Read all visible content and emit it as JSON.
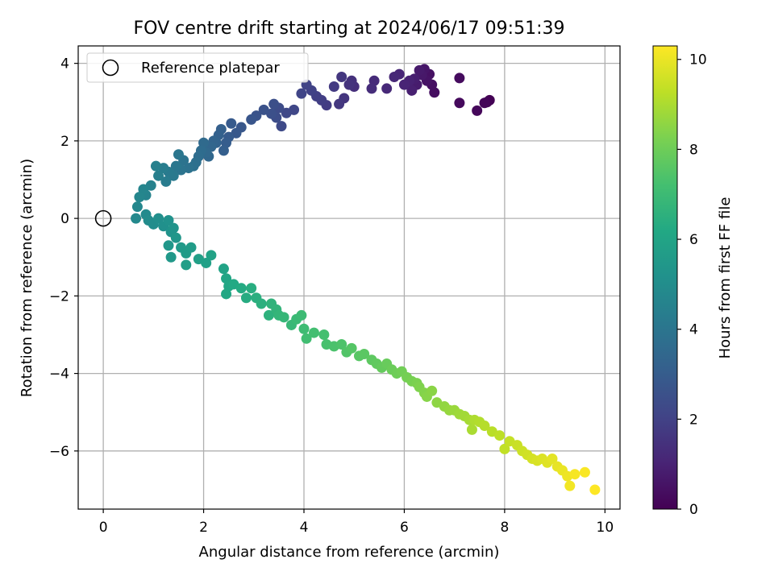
{
  "chart_data": {
    "type": "scatter",
    "title": "FOV centre drift starting at 2024/06/17 09:51:39",
    "xlabel": "Angular distance from reference (arcmin)",
    "ylabel": "Rotation from reference (arcmin)",
    "xlim": [
      -0.5,
      10.3
    ],
    "ylim": [
      -7.5,
      4.45
    ],
    "xticks": [
      0,
      2,
      4,
      6,
      8,
      10
    ],
    "yticks": [
      -6,
      -4,
      -2,
      0,
      2,
      4
    ],
    "grid": true,
    "legend": {
      "position": "top-left",
      "entries": [
        "Reference platepar"
      ]
    },
    "reference_point": {
      "x": 0,
      "y": 0,
      "label": "Reference platepar"
    },
    "colorbar": {
      "label": "Hours from first FF file",
      "colormap": "viridis",
      "range": [
        0,
        10.3
      ],
      "ticks": [
        0,
        2,
        4,
        6,
        8,
        10
      ]
    },
    "series": [
      {
        "columns": [
          "x",
          "y",
          "hours"
        ],
        "points": [
          [
            7.7,
            3.05
          ],
          [
            7.65,
            3.0
          ],
          [
            7.6,
            2.98
          ],
          [
            7.45,
            2.78
          ],
          [
            7.1,
            2.98
          ],
          [
            7.1,
            3.62
          ],
          [
            6.6,
            3.25
          ],
          [
            6.55,
            3.45
          ],
          [
            6.5,
            3.72
          ],
          [
            6.45,
            3.55
          ],
          [
            6.4,
            3.85
          ],
          [
            6.35,
            3.7
          ],
          [
            6.3,
            3.82
          ],
          [
            6.25,
            3.45
          ],
          [
            6.2,
            3.6
          ],
          [
            6.15,
            3.3
          ],
          [
            6.1,
            3.55
          ],
          [
            6.0,
            3.45
          ],
          [
            5.9,
            3.72
          ],
          [
            5.8,
            3.65
          ],
          [
            5.65,
            3.35
          ],
          [
            5.4,
            3.55
          ],
          [
            5.35,
            3.35
          ],
          [
            5.0,
            3.4
          ],
          [
            4.95,
            3.55
          ],
          [
            4.9,
            3.45
          ],
          [
            4.8,
            3.1
          ],
          [
            4.75,
            3.65
          ],
          [
            4.7,
            2.95
          ],
          [
            4.6,
            3.4
          ],
          [
            4.45,
            2.92
          ],
          [
            4.35,
            3.05
          ],
          [
            4.25,
            3.15
          ],
          [
            4.15,
            3.3
          ],
          [
            4.05,
            3.45
          ],
          [
            3.95,
            3.22
          ],
          [
            3.8,
            2.8
          ],
          [
            3.65,
            2.72
          ],
          [
            3.55,
            2.38
          ],
          [
            3.5,
            2.85
          ],
          [
            3.45,
            2.6
          ],
          [
            3.4,
            2.95
          ],
          [
            3.35,
            2.7
          ],
          [
            3.2,
            2.8
          ],
          [
            3.05,
            2.65
          ],
          [
            2.95,
            2.55
          ],
          [
            2.75,
            2.35
          ],
          [
            2.65,
            2.2
          ],
          [
            2.55,
            2.45
          ],
          [
            2.5,
            2.1
          ],
          [
            2.45,
            1.95
          ],
          [
            2.4,
            1.75
          ],
          [
            2.35,
            2.3
          ],
          [
            2.3,
            2.15
          ],
          [
            2.25,
            1.95
          ],
          [
            2.2,
            2.0
          ],
          [
            2.15,
            1.85
          ],
          [
            2.1,
            1.6
          ],
          [
            2.05,
            1.7
          ],
          [
            2.0,
            1.95
          ],
          [
            1.95,
            1.75
          ],
          [
            1.9,
            1.6
          ],
          [
            1.85,
            1.45
          ],
          [
            1.8,
            1.35
          ],
          [
            1.7,
            1.3
          ],
          [
            1.6,
            1.5
          ],
          [
            1.55,
            1.25
          ],
          [
            1.5,
            1.65
          ],
          [
            1.45,
            1.35
          ],
          [
            1.4,
            1.1
          ],
          [
            1.3,
            1.2
          ],
          [
            1.25,
            0.95
          ],
          [
            1.2,
            1.3
          ],
          [
            1.1,
            1.1
          ],
          [
            1.05,
            1.35
          ],
          [
            0.95,
            0.85
          ],
          [
            0.85,
            0.6
          ],
          [
            0.8,
            0.75
          ],
          [
            0.72,
            0.55
          ],
          [
            0.68,
            0.3
          ],
          [
            0.65,
            0.0
          ],
          [
            0.85,
            0.1
          ],
          [
            0.9,
            -0.05
          ],
          [
            1.0,
            -0.15
          ],
          [
            1.1,
            0.0
          ],
          [
            1.2,
            -0.2
          ],
          [
            1.3,
            -0.05
          ],
          [
            1.35,
            -0.35
          ],
          [
            1.4,
            -0.25
          ],
          [
            1.45,
            -0.5
          ],
          [
            1.3,
            -0.7
          ],
          [
            1.35,
            -1.0
          ],
          [
            1.55,
            -0.75
          ],
          [
            1.65,
            -0.9
          ],
          [
            1.75,
            -0.75
          ],
          [
            1.65,
            -1.2
          ],
          [
            1.9,
            -1.05
          ],
          [
            2.05,
            -1.15
          ],
          [
            2.15,
            -0.95
          ],
          [
            2.4,
            -1.3
          ],
          [
            2.45,
            -1.55
          ],
          [
            2.5,
            -1.75
          ],
          [
            2.45,
            -1.95
          ],
          [
            2.6,
            -1.7
          ],
          [
            2.75,
            -1.8
          ],
          [
            2.85,
            -2.05
          ],
          [
            2.95,
            -1.8
          ],
          [
            3.05,
            -2.05
          ],
          [
            3.15,
            -2.2
          ],
          [
            3.3,
            -2.5
          ],
          [
            3.35,
            -2.2
          ],
          [
            3.45,
            -2.35
          ],
          [
            3.5,
            -2.5
          ],
          [
            3.6,
            -2.55
          ],
          [
            3.75,
            -2.75
          ],
          [
            3.85,
            -2.6
          ],
          [
            3.95,
            -2.5
          ],
          [
            4.0,
            -2.85
          ],
          [
            4.05,
            -3.1
          ],
          [
            4.2,
            -2.95
          ],
          [
            4.4,
            -3.0
          ],
          [
            4.45,
            -3.25
          ],
          [
            4.6,
            -3.3
          ],
          [
            4.75,
            -3.25
          ],
          [
            4.85,
            -3.45
          ],
          [
            4.95,
            -3.35
          ],
          [
            5.1,
            -3.55
          ],
          [
            5.2,
            -3.5
          ],
          [
            5.35,
            -3.65
          ],
          [
            5.45,
            -3.75
          ],
          [
            5.55,
            -3.85
          ],
          [
            5.65,
            -3.75
          ],
          [
            5.75,
            -3.9
          ],
          [
            5.85,
            -4.0
          ],
          [
            5.95,
            -3.95
          ],
          [
            6.05,
            -4.1
          ],
          [
            6.15,
            -4.2
          ],
          [
            6.25,
            -4.25
          ],
          [
            6.3,
            -4.35
          ],
          [
            6.4,
            -4.5
          ],
          [
            6.45,
            -4.6
          ],
          [
            6.55,
            -4.45
          ],
          [
            6.65,
            -4.75
          ],
          [
            6.8,
            -4.85
          ],
          [
            6.9,
            -4.95
          ],
          [
            7.0,
            -4.95
          ],
          [
            7.1,
            -5.05
          ],
          [
            7.2,
            -5.1
          ],
          [
            7.3,
            -5.2
          ],
          [
            7.35,
            -5.45
          ],
          [
            7.4,
            -5.2
          ],
          [
            7.5,
            -5.25
          ],
          [
            7.6,
            -5.35
          ],
          [
            7.75,
            -5.5
          ],
          [
            7.9,
            -5.6
          ],
          [
            8.0,
            -5.95
          ],
          [
            8.1,
            -5.75
          ],
          [
            8.25,
            -5.85
          ],
          [
            8.35,
            -6.0
          ],
          [
            8.45,
            -6.1
          ],
          [
            8.55,
            -6.2
          ],
          [
            8.65,
            -6.25
          ],
          [
            8.75,
            -6.2
          ],
          [
            8.85,
            -6.3
          ],
          [
            8.95,
            -6.2
          ],
          [
            9.05,
            -6.4
          ],
          [
            9.15,
            -6.5
          ],
          [
            9.25,
            -6.65
          ],
          [
            9.3,
            -6.9
          ],
          [
            9.4,
            -6.6
          ],
          [
            9.6,
            -6.55
          ],
          [
            9.8,
            -7.0
          ]
        ]
      }
    ]
  }
}
